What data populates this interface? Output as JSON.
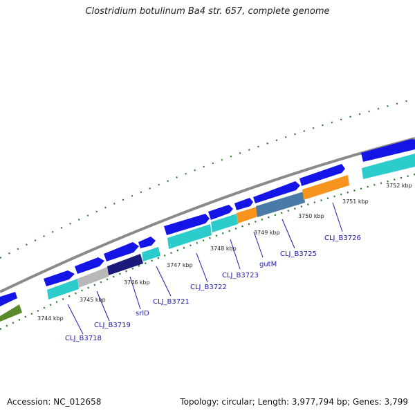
{
  "map": {
    "title": "Clostridium botulinum Ba4 str. 657, complete genome",
    "accession": "Accession: NC_012658",
    "summary": "Topology: circular; Length: 3,977,794 bp; Genes: 3,799"
  },
  "scale_labels": [
    {
      "text": "3744 kbp"
    },
    {
      "text": "3745 kbp"
    },
    {
      "text": "3746 kbp"
    },
    {
      "text": "3747 kbp"
    },
    {
      "text": "3748 kbp"
    },
    {
      "text": "3749 kbp"
    },
    {
      "text": "3750 kbp"
    },
    {
      "text": "3751 kbp"
    },
    {
      "text": "3752 kbp"
    }
  ],
  "gene_labels": [
    {
      "text": "CLJ_B3718"
    },
    {
      "text": "CLJ_B3719"
    },
    {
      "text": "srlD"
    },
    {
      "text": "CLJ_B3721"
    },
    {
      "text": "CLJ_B3722"
    },
    {
      "text": "CLJ_B3723"
    },
    {
      "text": "gutM"
    },
    {
      "text": "CLJ_B3725"
    },
    {
      "text": "CLJ_B3726"
    }
  ],
  "colors": {
    "backbone": "#8a8a8a",
    "gene_blue": "#1414e6",
    "cds_cyan": "#2ccccc",
    "grey": "#b8b8b8",
    "orange": "#f7941d",
    "navy": "#1a1a7a",
    "steel": "#4a7aa8",
    "olive": "#5a8a2a",
    "tick_green": "#2a7a2a",
    "leader": "#1a1aa8"
  }
}
